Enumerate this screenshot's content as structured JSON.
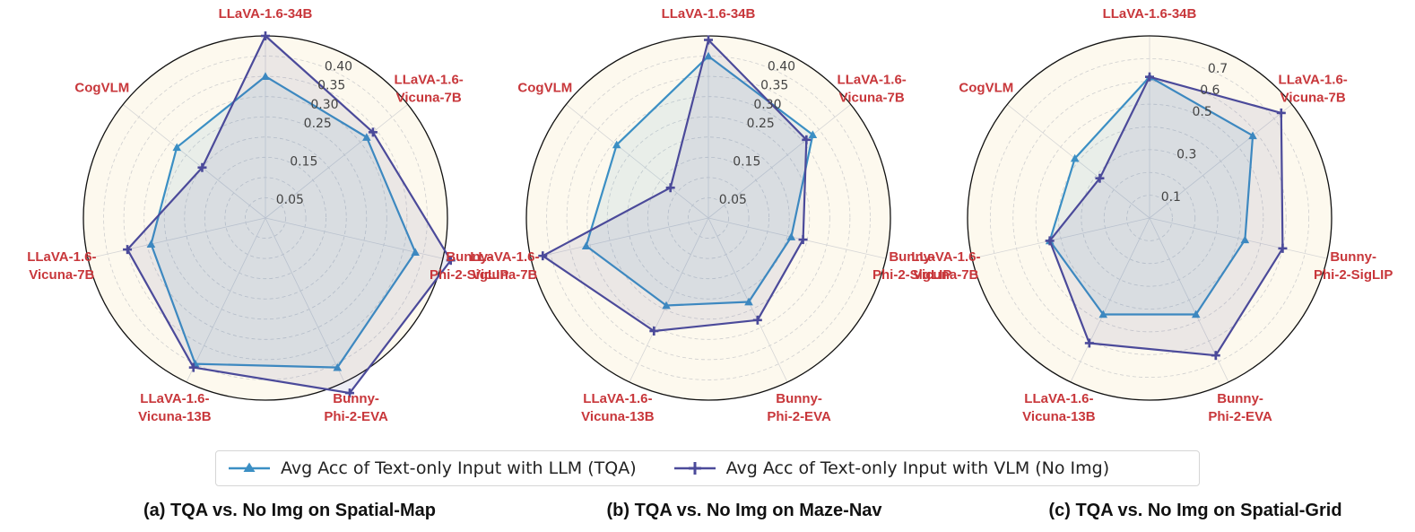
{
  "legend": {
    "tqa_label": "Avg Acc of Text-only Input with LLM (TQA)",
    "noimg_label": "Avg Acc of Text-only Input with VLM (No Img)"
  },
  "colors": {
    "tqa": "#3b8fc4",
    "noimg": "#4b4a9a",
    "axis_label": "#c8373b",
    "background": "#fdf9ee"
  },
  "icons": {
    "tqa_marker": "triangle-up",
    "noimg_marker": "plus"
  },
  "captions": [
    "(a) TQA vs. No Img on Spatial-Map",
    "(b) TQA vs. No Img on Maze-Nav",
    "(c) TQA vs. No Img on Spatial-Grid"
  ],
  "chart_data": [
    {
      "type": "radar",
      "title": "",
      "categories": [
        "LLaVA-1.6-34B",
        "LLaVA-1.6-\nVicuna-7B",
        "Bunny-\nPhi-2-SigLIP",
        "Bunny-\nPhi-2-EVA",
        "LLaVA-1.6-\nVicuna-13B",
        "LLaVA-1.6-\nVicuna-7B",
        "CogVLM"
      ],
      "rlim": [
        0,
        0.45
      ],
      "ticks": [
        0.05,
        0.15,
        0.25,
        0.3,
        0.35,
        0.4
      ],
      "series": [
        {
          "name": "Avg Acc of Text-only Input with LLM (TQA)",
          "values": [
            0.35,
            0.32,
            0.38,
            0.41,
            0.4,
            0.29,
            0.28
          ]
        },
        {
          "name": "Avg Acc of Text-only Input with VLM (No Img)",
          "values": [
            0.45,
            0.34,
            0.47,
            0.48,
            0.41,
            0.35,
            0.2
          ]
        }
      ]
    },
    {
      "type": "radar",
      "title": "",
      "categories": [
        "LLaVA-1.6-34B",
        "LLaVA-1.6-\nVicuna-7B",
        "Bunny-\nPhi-2-SigLIP",
        "Bunny-\nPhi-2-EVA",
        "LLaVA-1.6-\nVicuna-13B",
        "LLaVA-1.6-\nVicuna-7B",
        "CogVLM"
      ],
      "rlim": [
        0,
        0.45
      ],
      "ticks": [
        0.05,
        0.15,
        0.25,
        0.3,
        0.35,
        0.4
      ],
      "series": [
        {
          "name": "Avg Acc of Text-only Input with LLM (TQA)",
          "values": [
            0.4,
            0.33,
            0.21,
            0.23,
            0.24,
            0.31,
            0.29
          ]
        },
        {
          "name": "Avg Acc of Text-only Input with VLM (No Img)",
          "values": [
            0.44,
            0.31,
            0.24,
            0.28,
            0.31,
            0.42,
            0.12
          ]
        }
      ]
    },
    {
      "type": "radar",
      "title": "",
      "categories": [
        "LLaVA-1.6-34B",
        "LLaVA-1.6-\nVicuna-7B",
        "Bunny-\nPhi-2-SigLIP",
        "Bunny-\nPhi-2-EVA",
        "LLaVA-1.6-\nVicuna-13B",
        "LLaVA-1.6-\nVicuna-7B",
        "CogVLM"
      ],
      "rlim": [
        0,
        0.8
      ],
      "ticks": [
        0.1,
        0.3,
        0.5,
        0.6,
        0.7
      ],
      "series": [
        {
          "name": "Avg Acc of Text-only Input with LLM (TQA)",
          "values": [
            0.62,
            0.58,
            0.43,
            0.47,
            0.47,
            0.45,
            0.42
          ]
        },
        {
          "name": "Avg Acc of Text-only Input with VLM (No Img)",
          "values": [
            0.62,
            0.74,
            0.6,
            0.67,
            0.61,
            0.45,
            0.28
          ]
        }
      ]
    }
  ]
}
